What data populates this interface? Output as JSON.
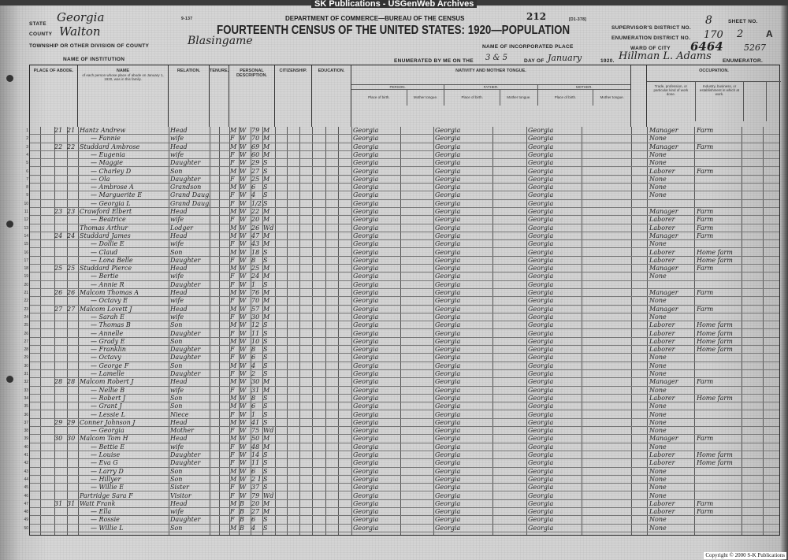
{
  "banner": "SK Publications - USGenWeb Archives",
  "form_number": "9-137",
  "form_code": "[D1-378]",
  "department": "DEPARTMENT OF COMMERCE—BUREAU OF THE CENSUS",
  "page_stamp": "212",
  "title": "FOURTEENTH CENSUS OF THE UNITED STATES: 1920—POPULATION",
  "header": {
    "state_label": "STATE",
    "state": "Georgia",
    "county_label": "COUNTY",
    "county": "Walton",
    "township_label": "TOWNSHIP OR OTHER DIVISION OF COUNTY",
    "township": "Blasingame",
    "incorporated_label": "NAME OF INCORPORATED PLACE",
    "institution_label": "NAME OF INSTITUTION",
    "supervisor_label": "SUPERVISOR'S DISTRICT NO.",
    "supervisor": "8",
    "enumeration_label": "ENUMERATION DISTRICT NO.",
    "enumeration": "170",
    "sheet_label": "SHEET NO.",
    "sheet": "2",
    "sheet_side": "A",
    "ward_label": "WARD OF CITY",
    "ward_note": "6464",
    "ward_note2": "5267",
    "enumerated_label": "ENUMERATED BY ME ON THE",
    "enumerated_days": "3 & 5",
    "day_of_label": "DAY OF",
    "month": "January",
    "year": "1920.",
    "enumerator": "Hillman L. Adams",
    "enumerator_label": "ENUMERATOR."
  },
  "column_groups": {
    "abode": "PLACE OF ABODE.",
    "name": "NAME",
    "name_sub": "of each person whose place of abode on January 1, 1920, was in this family.",
    "relation": "RELATION.",
    "tenure": "TENURE.",
    "personal": "PERSONAL DESCRIPTION.",
    "citizenship": "CITIZENSHIP.",
    "education": "EDUCATION.",
    "nativity": "NATIVITY AND MOTHER TONGUE.",
    "person": "PERSON.",
    "father": "FATHER.",
    "mother": "MOTHER.",
    "place_of_birth": "Place of birth.",
    "mother_tongue": "Mother tongue.",
    "occupation": "OCCUPATION.",
    "trade": "Trade, profession, or particular kind of work done.",
    "industry": "Industry, business, or establishment in which at work."
  },
  "rows": [
    {
      "n": "1",
      "d": "21",
      "f": "21",
      "name": "Hantz Andrew",
      "rel": "Head",
      "sex": "M",
      "race": "W",
      "age": "79",
      "ms": "M",
      "pob": "Georgia",
      "occ": "Manager",
      "ind": "Farm"
    },
    {
      "n": "2",
      "name": "— Fannie",
      "rel": "wife",
      "sex": "F",
      "race": "W",
      "age": "70",
      "ms": "M",
      "pob": "Georgia",
      "occ": "None"
    },
    {
      "n": "3",
      "d": "22",
      "f": "22",
      "name": "Studdard Ambrose",
      "rel": "Head",
      "sex": "M",
      "race": "W",
      "age": "69",
      "ms": "M",
      "pob": "Georgia",
      "occ": "Manager",
      "ind": "Farm"
    },
    {
      "n": "4",
      "name": "— Eugenia",
      "rel": "wife",
      "sex": "F",
      "race": "W",
      "age": "60",
      "ms": "M",
      "pob": "Georgia",
      "occ": "None"
    },
    {
      "n": "5",
      "name": "— Maggie",
      "rel": "Daughter",
      "sex": "F",
      "race": "W",
      "age": "29",
      "ms": "S",
      "pob": "Georgia",
      "occ": "None"
    },
    {
      "n": "6",
      "name": "— Charley D",
      "rel": "Son",
      "sex": "M",
      "race": "W",
      "age": "27",
      "ms": "S",
      "pob": "Georgia",
      "occ": "Laborer",
      "ind": "Farm"
    },
    {
      "n": "7",
      "name": "— Ola",
      "rel": "Daughter",
      "sex": "F",
      "race": "W",
      "age": "25",
      "ms": "M",
      "pob": "Georgia",
      "occ": "None"
    },
    {
      "n": "8",
      "name": "— Ambrose A",
      "rel": "Grandson",
      "sex": "M",
      "race": "W",
      "age": "6",
      "ms": "S",
      "pob": "Georgia",
      "occ": "None"
    },
    {
      "n": "9",
      "name": "— Marguerite E",
      "rel": "Grand Daughter",
      "sex": "F",
      "race": "W",
      "age": "4",
      "ms": "S",
      "pob": "Georgia",
      "occ": "None"
    },
    {
      "n": "10",
      "name": "— Georgia L",
      "rel": "Grand Daughter",
      "sex": "F",
      "race": "W",
      "age": "1/2",
      "ms": "S",
      "pob": "Georgia"
    },
    {
      "n": "11",
      "d": "23",
      "f": "23",
      "name": "Crawford Elbert",
      "rel": "Head",
      "sex": "M",
      "race": "W",
      "age": "22",
      "ms": "M",
      "pob": "Georgia",
      "occ": "Manager",
      "ind": "Farm"
    },
    {
      "n": "12",
      "name": "— Beatrice",
      "rel": "wife",
      "sex": "F",
      "race": "W",
      "age": "20",
      "ms": "M",
      "pob": "Georgia",
      "occ": "Laborer",
      "ind": "Farm"
    },
    {
      "n": "13",
      "name": "Thomas Arthur",
      "rel": "Lodger",
      "sex": "M",
      "race": "W",
      "age": "26",
      "ms": "Wd",
      "pob": "Georgia",
      "occ": "Laborer",
      "ind": "Farm"
    },
    {
      "n": "14",
      "d": "24",
      "f": "24",
      "name": "Studdard James",
      "rel": "Head",
      "sex": "M",
      "race": "W",
      "age": "47",
      "ms": "M",
      "pob": "Georgia",
      "occ": "Manager",
      "ind": "Farm"
    },
    {
      "n": "15",
      "name": "— Dollie E",
      "rel": "wife",
      "sex": "F",
      "race": "W",
      "age": "43",
      "ms": "M",
      "pob": "Georgia",
      "occ": "None"
    },
    {
      "n": "16",
      "name": "— Claud",
      "rel": "Son",
      "sex": "M",
      "race": "W",
      "age": "18",
      "ms": "S",
      "pob": "Georgia",
      "occ": "Laborer",
      "ind": "Home farm"
    },
    {
      "n": "17",
      "name": "— Lona Belle",
      "rel": "Daughter",
      "sex": "F",
      "race": "W",
      "age": "8",
      "ms": "S",
      "pob": "Georgia",
      "occ": "Laborer",
      "ind": "Home farm"
    },
    {
      "n": "18",
      "d": "25",
      "f": "25",
      "name": "Studdard Pierce",
      "rel": "Head",
      "sex": "M",
      "race": "W",
      "age": "25",
      "ms": "M",
      "pob": "Georgia",
      "occ": "Manager",
      "ind": "Farm"
    },
    {
      "n": "19",
      "name": "— Bertie",
      "rel": "wife",
      "sex": "F",
      "race": "W",
      "age": "24",
      "ms": "M",
      "pob": "Georgia",
      "occ": "None"
    },
    {
      "n": "20",
      "name": "— Annie R",
      "rel": "Daughter",
      "sex": "F",
      "race": "W",
      "age": "1",
      "ms": "S",
      "pob": "Georgia"
    },
    {
      "n": "21",
      "d": "26",
      "f": "26",
      "name": "Malcom Thomas A",
      "rel": "Head",
      "sex": "M",
      "race": "W",
      "age": "76",
      "ms": "M",
      "pob": "Georgia",
      "occ": "Manager",
      "ind": "Farm"
    },
    {
      "n": "22",
      "name": "— Octavy E",
      "rel": "wife",
      "sex": "F",
      "race": "W",
      "age": "70",
      "ms": "M",
      "pob": "Georgia",
      "occ": "None"
    },
    {
      "n": "23",
      "d": "27",
      "f": "27",
      "name": "Malcom Lovett J",
      "rel": "Head",
      "sex": "M",
      "race": "W",
      "age": "57",
      "ms": "M",
      "pob": "Georgia",
      "occ": "Manager",
      "ind": "Farm"
    },
    {
      "n": "24",
      "name": "— Sarah E",
      "rel": "wife",
      "sex": "F",
      "race": "W",
      "age": "30",
      "ms": "M",
      "pob": "Georgia",
      "occ": "None"
    },
    {
      "n": "25",
      "name": "— Thomas B",
      "rel": "Son",
      "sex": "M",
      "race": "W",
      "age": "12",
      "ms": "S",
      "pob": "Georgia",
      "occ": "Laborer",
      "ind": "Home farm"
    },
    {
      "n": "26",
      "name": "— Annelle",
      "rel": "Daughter",
      "sex": "F",
      "race": "W",
      "age": "11",
      "ms": "S",
      "pob": "Georgia",
      "occ": "Laborer",
      "ind": "Home farm"
    },
    {
      "n": "27",
      "name": "— Grady E",
      "rel": "Son",
      "sex": "M",
      "race": "W",
      "age": "10",
      "ms": "S",
      "pob": "Georgia",
      "occ": "Laborer",
      "ind": "Home farm"
    },
    {
      "n": "28",
      "name": "— Franklin",
      "rel": "Daughter",
      "sex": "F",
      "race": "W",
      "age": "8",
      "ms": "S",
      "pob": "Georgia",
      "occ": "Laborer",
      "ind": "Home farm"
    },
    {
      "n": "29",
      "name": "— Octavy",
      "rel": "Daughter",
      "sex": "F",
      "race": "W",
      "age": "6",
      "ms": "S",
      "pob": "Georgia",
      "occ": "None"
    },
    {
      "n": "30",
      "name": "— George F",
      "rel": "Son",
      "sex": "M",
      "race": "W",
      "age": "4",
      "ms": "S",
      "pob": "Georgia",
      "occ": "None"
    },
    {
      "n": "31",
      "name": "— Lamelle",
      "rel": "Daughter",
      "sex": "F",
      "race": "W",
      "age": "2",
      "ms": "S",
      "pob": "Georgia",
      "occ": "None"
    },
    {
      "n": "32",
      "d": "28",
      "f": "28",
      "name": "Malcom Robert J",
      "rel": "Head",
      "sex": "M",
      "race": "W",
      "age": "30",
      "ms": "M",
      "pob": "Georgia",
      "occ": "Manager",
      "ind": "Farm"
    },
    {
      "n": "33",
      "name": "— Nellie B",
      "rel": "wife",
      "sex": "F",
      "race": "W",
      "age": "31",
      "ms": "M",
      "pob": "Georgia",
      "occ": "None"
    },
    {
      "n": "34",
      "name": "— Robert J",
      "rel": "Son",
      "sex": "M",
      "race": "W",
      "age": "8",
      "ms": "S",
      "pob": "Georgia",
      "occ": "Laborer",
      "ind": "Home farm"
    },
    {
      "n": "35",
      "name": "— Grant J",
      "rel": "Son",
      "sex": "M",
      "race": "W",
      "age": "6",
      "ms": "S",
      "pob": "Georgia",
      "occ": "None"
    },
    {
      "n": "36",
      "name": "— Lessie L",
      "rel": "Niece",
      "sex": "F",
      "race": "W",
      "age": "1",
      "ms": "S",
      "pob": "Georgia",
      "occ": "None"
    },
    {
      "n": "37",
      "d": "29",
      "f": "29",
      "name": "Conner Johnson J",
      "rel": "Head",
      "sex": "M",
      "race": "W",
      "age": "41",
      "ms": "S",
      "pob": "Georgia",
      "occ": "None"
    },
    {
      "n": "38",
      "name": "— Georgia",
      "rel": "Mother",
      "sex": "F",
      "race": "W",
      "age": "75",
      "ms": "Wd",
      "pob": "Georgia",
      "occ": "None"
    },
    {
      "n": "39",
      "d": "30",
      "f": "30",
      "name": "Malcom Tom H",
      "rel": "Head",
      "sex": "M",
      "race": "W",
      "age": "50",
      "ms": "M",
      "pob": "Georgia",
      "occ": "Manager",
      "ind": "Farm"
    },
    {
      "n": "40",
      "name": "— Bettie E",
      "rel": "wife",
      "sex": "F",
      "race": "W",
      "age": "48",
      "ms": "M",
      "pob": "Georgia",
      "occ": "None"
    },
    {
      "n": "41",
      "name": "— Louise",
      "rel": "Daughter",
      "sex": "F",
      "race": "W",
      "age": "14",
      "ms": "S",
      "pob": "Georgia",
      "occ": "Laborer",
      "ind": "Home farm"
    },
    {
      "n": "42",
      "name": "— Eva G",
      "rel": "Daughter",
      "sex": "F",
      "race": "W",
      "age": "11",
      "ms": "S",
      "pob": "Georgia",
      "occ": "Laborer",
      "ind": "Home farm"
    },
    {
      "n": "43",
      "name": "— Larry D",
      "rel": "Son",
      "sex": "M",
      "race": "W",
      "age": "6",
      "ms": "S",
      "pob": "Georgia",
      "occ": "None"
    },
    {
      "n": "44",
      "name": "— Hillyer",
      "rel": "Son",
      "sex": "M",
      "race": "W",
      "age": "2 11/12",
      "ms": "S",
      "pob": "Georgia",
      "occ": "None"
    },
    {
      "n": "45",
      "name": "— Willie E",
      "rel": "Sister",
      "sex": "F",
      "race": "W",
      "age": "37",
      "ms": "S",
      "pob": "Georgia",
      "occ": "None"
    },
    {
      "n": "46",
      "name": "Partridge Sara F",
      "rel": "Visitor",
      "sex": "F",
      "race": "W",
      "age": "79",
      "ms": "Wd",
      "pob": "Georgia",
      "occ": "None"
    },
    {
      "n": "47",
      "d": "31",
      "f": "31",
      "name": "Watt Frank",
      "rel": "Head",
      "sex": "M",
      "race": "B",
      "age": "20",
      "ms": "M",
      "pob": "Georgia",
      "occ": "Laborer",
      "ind": "Farm"
    },
    {
      "n": "48",
      "name": "— Ella",
      "rel": "wife",
      "sex": "F",
      "race": "B",
      "age": "27",
      "ms": "M",
      "pob": "Georgia",
      "occ": "Laborer",
      "ind": "Farm"
    },
    {
      "n": "49",
      "name": "— Rossie",
      "rel": "Daughter",
      "sex": "F",
      "race": "B",
      "age": "6",
      "ms": "S",
      "pob": "Georgia",
      "occ": "None"
    },
    {
      "n": "50",
      "name": "— Willie L",
      "rel": "Son",
      "sex": "M",
      "race": "B",
      "age": "4",
      "ms": "S",
      "pob": "Georgia",
      "occ": "None"
    }
  ],
  "copyright": "Copyright © 2000 S-K Publications"
}
